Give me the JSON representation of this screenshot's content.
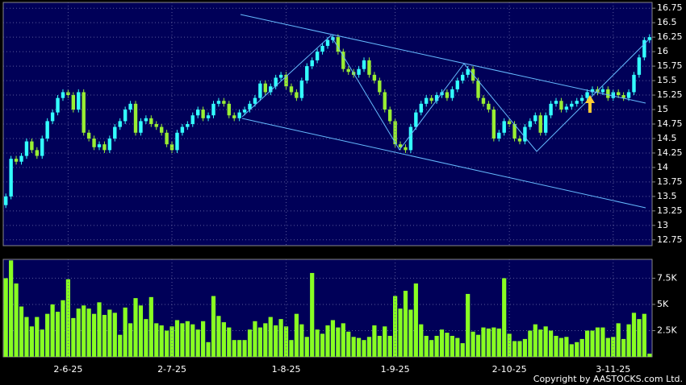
{
  "chart_data": [
    {
      "type": "candlestick",
      "open": [
        13.35,
        13.5,
        14.15,
        14.1,
        14.2,
        14.45,
        14.3,
        14.2,
        14.5,
        14.8,
        14.95,
        15.2,
        15.3,
        15.25,
        15.0,
        15.3,
        14.6,
        14.5,
        14.35,
        14.4,
        14.3,
        14.5,
        14.7,
        14.8,
        15.0,
        15.1,
        14.6,
        14.8,
        14.85,
        14.75,
        14.7,
        14.6,
        14.4,
        14.3,
        14.6,
        14.7,
        14.75,
        14.9,
        15.0,
        14.85,
        14.9,
        15.1,
        15.15,
        15.1,
        14.9,
        14.85,
        14.95,
        15.0,
        15.1,
        15.2,
        15.45,
        15.3,
        15.4,
        15.55,
        15.6,
        15.4,
        15.3,
        15.2,
        15.5,
        15.75,
        15.85,
        16.0,
        16.1,
        16.2,
        16.25,
        16.0,
        15.7,
        15.65,
        15.6,
        15.7,
        15.85,
        15.6,
        15.5,
        15.3,
        15.0,
        14.8,
        14.4,
        14.35,
        14.3,
        14.7,
        14.95,
        15.1,
        15.2,
        15.15,
        15.25,
        15.3,
        15.2,
        15.35,
        15.5,
        15.6,
        15.7,
        15.5,
        15.2,
        15.1,
        15.0,
        14.5,
        14.6,
        14.8,
        14.75,
        14.5,
        14.45,
        14.7,
        14.8,
        14.9,
        14.6,
        14.9,
        15.1,
        15.15,
        15.0,
        15.05,
        15.1,
        15.15,
        15.2,
        15.3,
        15.35,
        15.3,
        15.35,
        15.2,
        15.3,
        15.25,
        15.2,
        15.3,
        15.6,
        15.9,
        16.2
      ],
      "high": [
        13.55,
        14.2,
        14.2,
        14.25,
        14.5,
        14.5,
        14.35,
        14.55,
        14.85,
        15.0,
        15.25,
        15.35,
        15.35,
        15.3,
        15.35,
        15.35,
        14.65,
        14.55,
        14.45,
        14.45,
        14.55,
        14.75,
        14.85,
        15.05,
        15.15,
        15.15,
        14.85,
        14.9,
        14.9,
        14.8,
        14.75,
        14.65,
        14.45,
        14.65,
        14.75,
        14.8,
        14.95,
        15.05,
        15.05,
        14.95,
        15.15,
        15.2,
        15.2,
        15.15,
        14.95,
        15.0,
        15.05,
        15.15,
        15.25,
        15.5,
        15.5,
        15.45,
        15.6,
        15.65,
        15.65,
        15.45,
        15.35,
        15.55,
        15.8,
        15.9,
        16.05,
        16.15,
        16.25,
        16.3,
        16.3,
        16.05,
        15.75,
        15.7,
        15.75,
        15.9,
        15.9,
        15.65,
        15.55,
        15.35,
        15.05,
        14.85,
        14.45,
        14.4,
        14.75,
        15.0,
        15.15,
        15.25,
        15.25,
        15.3,
        15.35,
        15.35,
        15.4,
        15.55,
        15.65,
        15.75,
        15.75,
        15.55,
        15.25,
        15.15,
        15.05,
        14.65,
        14.85,
        14.85,
        14.8,
        14.55,
        14.75,
        14.85,
        14.95,
        14.95,
        14.95,
        15.15,
        15.2,
        15.2,
        15.1,
        15.15,
        15.2,
        15.25,
        15.35,
        15.4,
        15.4,
        15.4,
        15.4,
        15.35,
        15.35,
        15.3,
        15.35,
        15.65,
        15.95,
        16.25,
        16.3
      ],
      "low": [
        13.3,
        13.45,
        14.05,
        14.05,
        14.15,
        14.25,
        14.15,
        14.15,
        14.45,
        14.75,
        14.9,
        15.15,
        15.2,
        14.95,
        14.95,
        14.55,
        14.45,
        14.3,
        14.3,
        14.25,
        14.25,
        14.45,
        14.65,
        14.75,
        14.95,
        14.55,
        14.55,
        14.75,
        14.7,
        14.65,
        14.55,
        14.35,
        14.25,
        14.25,
        14.55,
        14.65,
        14.7,
        14.85,
        14.8,
        14.8,
        14.85,
        15.05,
        15.05,
        14.85,
        14.8,
        14.8,
        14.9,
        14.95,
        15.05,
        15.15,
        15.25,
        15.25,
        15.35,
        15.5,
        15.35,
        15.25,
        15.15,
        15.15,
        15.45,
        15.7,
        15.8,
        15.95,
        16.05,
        16.15,
        15.95,
        15.65,
        15.6,
        15.55,
        15.55,
        15.65,
        15.55,
        15.45,
        15.25,
        14.95,
        14.75,
        14.35,
        14.3,
        14.25,
        14.25,
        14.65,
        14.9,
        15.05,
        15.1,
        15.1,
        15.2,
        15.15,
        15.15,
        15.3,
        15.45,
        15.55,
        15.45,
        15.15,
        15.05,
        14.95,
        14.45,
        14.45,
        14.55,
        14.7,
        14.45,
        14.4,
        14.4,
        14.65,
        14.75,
        14.55,
        14.55,
        14.85,
        15.05,
        14.95,
        14.95,
        15.0,
        15.05,
        15.1,
        15.15,
        15.25,
        15.25,
        15.25,
        15.15,
        15.15,
        15.2,
        15.15,
        15.15,
        15.25,
        15.55,
        15.85,
        16.15
      ],
      "close": [
        13.5,
        14.15,
        14.1,
        14.2,
        14.45,
        14.3,
        14.2,
        14.5,
        14.8,
        14.95,
        15.2,
        15.3,
        15.25,
        15.0,
        15.3,
        14.6,
        14.5,
        14.35,
        14.4,
        14.3,
        14.5,
        14.7,
        14.8,
        15.0,
        15.1,
        14.6,
        14.8,
        14.85,
        14.75,
        14.7,
        14.6,
        14.4,
        14.3,
        14.6,
        14.7,
        14.75,
        14.9,
        15.0,
        14.85,
        14.9,
        15.1,
        15.15,
        15.1,
        14.9,
        14.85,
        14.95,
        15.0,
        15.1,
        15.2,
        15.45,
        15.3,
        15.4,
        15.55,
        15.6,
        15.4,
        15.3,
        15.2,
        15.5,
        15.75,
        15.85,
        16.0,
        16.1,
        16.2,
        16.25,
        16.0,
        15.7,
        15.65,
        15.6,
        15.7,
        15.85,
        15.6,
        15.5,
        15.3,
        15.0,
        14.8,
        14.4,
        14.35,
        14.3,
        14.7,
        14.95,
        15.1,
        15.2,
        15.15,
        15.25,
        15.3,
        15.2,
        15.35,
        15.5,
        15.6,
        15.7,
        15.5,
        15.2,
        15.1,
        15.0,
        14.5,
        14.6,
        14.8,
        14.75,
        14.5,
        14.45,
        14.7,
        14.8,
        14.9,
        14.6,
        14.9,
        15.1,
        15.15,
        15.0,
        15.05,
        15.1,
        15.15,
        15.2,
        15.3,
        15.35,
        15.3,
        15.35,
        15.2,
        15.3,
        15.25,
        15.2,
        15.3,
        15.6,
        15.9,
        16.2,
        16.25
      ],
      "up_color": "#33ffff",
      "down_color": "#99ee33",
      "ylim": [
        12.65,
        16.85
      ],
      "yticks": [
        12.75,
        13,
        13.25,
        13.5,
        13.75,
        14,
        14.25,
        14.5,
        14.75,
        15,
        15.25,
        15.5,
        15.75,
        16,
        16.25,
        16.5,
        16.75
      ],
      "grid": true
    },
    {
      "type": "bar",
      "categories": [
        null,
        null,
        null,
        null,
        null,
        null,
        null,
        null,
        null,
        null,
        null,
        null,
        "2-6-25",
        null,
        null,
        null,
        null,
        null,
        null,
        null,
        null,
        null,
        null,
        null,
        null,
        null,
        null,
        null,
        null,
        null,
        null,
        null,
        "2-7-25",
        null,
        null,
        null,
        null,
        null,
        null,
        null,
        null,
        null,
        null,
        null,
        null,
        null,
        null,
        null,
        null,
        null,
        null,
        null,
        null,
        null,
        "1-8-25",
        null,
        null,
        null,
        null,
        null,
        null,
        null,
        null,
        null,
        null,
        null,
        null,
        null,
        null,
        null,
        null,
        null,
        null,
        null,
        null,
        "1-9-25",
        null,
        null,
        null,
        null,
        null,
        null,
        null,
        null,
        null,
        null,
        null,
        null,
        null,
        null,
        null,
        null,
        null,
        null,
        null,
        null,
        null,
        "2-10-25",
        null,
        null,
        null,
        null,
        null,
        null,
        null,
        null,
        null,
        null,
        null,
        null,
        null,
        null,
        null,
        null,
        null,
        null,
        null,
        "3-11-25",
        null,
        null,
        null,
        null,
        null,
        null,
        null
      ],
      "values": [
        7500,
        9200,
        7000,
        4800,
        3800,
        2900,
        3800,
        2600,
        4100,
        5000,
        4300,
        5400,
        7400,
        3700,
        4600,
        4900,
        4600,
        4100,
        5200,
        4000,
        4500,
        4200,
        2100,
        4700,
        3200,
        5600,
        4900,
        3600,
        5700,
        3200,
        3000,
        2500,
        2900,
        3500,
        3200,
        3400,
        3100,
        2600,
        3400,
        1400,
        5800,
        3900,
        3300,
        2800,
        1600,
        1600,
        1600,
        2600,
        3400,
        2800,
        3200,
        3800,
        3000,
        3600,
        2900,
        1600,
        4100,
        3100,
        1900,
        8000,
        2600,
        2200,
        3000,
        3500,
        2800,
        3200,
        2400,
        1900,
        1800,
        1600,
        1900,
        3000,
        2000,
        2900,
        2000,
        5800,
        4600,
        6300,
        4500,
        7000,
        3100,
        2000,
        1600,
        2000,
        2600,
        2300,
        2000,
        1800,
        1300,
        6000,
        2400,
        2100,
        2800,
        2700,
        2800,
        2700,
        7500,
        2200,
        1500,
        1500,
        1700,
        2500,
        3100,
        2600,
        2900,
        2500,
        2000,
        1800,
        1900,
        1200,
        1400,
        1700,
        2500,
        2500,
        2800,
        2800,
        1800,
        1900,
        3200,
        1700,
        3100,
        4200,
        3600,
        4100,
        300
      ],
      "color": "#88ff22",
      "ylim": [
        0,
        9300
      ],
      "yticks": [
        {
          "value": 2500,
          "label": "2.5K"
        },
        {
          "value": 5000,
          "label": "5K"
        },
        {
          "value": 7500,
          "label": "7.5K"
        }
      ],
      "grid": true,
      "source": "Copyright by AASTOCKS.com Ltd."
    }
  ]
}
